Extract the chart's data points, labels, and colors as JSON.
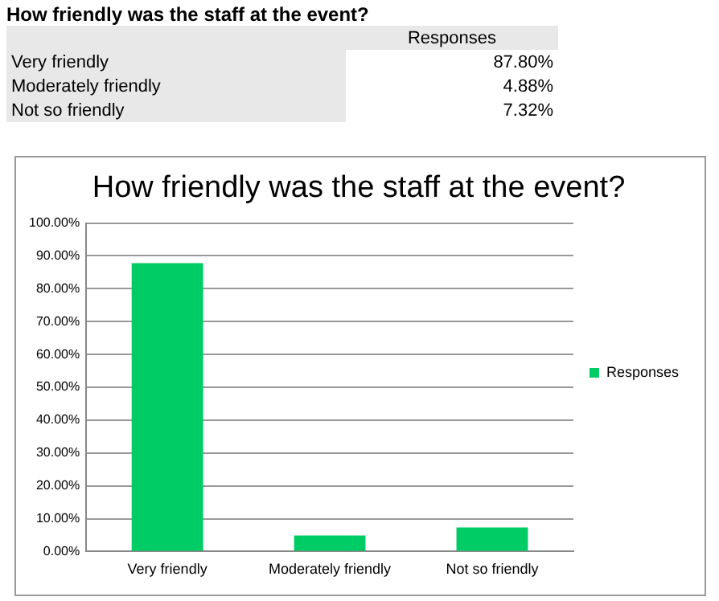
{
  "chart_data": [
    {
      "type": "other",
      "title": "How friendly was the staff at the event?",
      "annotations": [
        "Responses",
        "Very friendly",
        "87.80%",
        "Moderately friendly",
        "4.88%",
        "Not so friendly",
        "7.32%"
      ]
    },
    {
      "type": "bar",
      "title": "How friendly was the staff at the event?",
      "categories": [
        "Very friendly",
        "Moderately friendly",
        "Not so friendly"
      ],
      "series": [
        {
          "name": "Responses",
          "color": "#00cc66",
          "values": [
            87.8,
            4.88,
            7.32
          ]
        }
      ],
      "ylim": [
        0,
        100
      ],
      "yticks": [
        {
          "value": 0,
          "label": "0.00%"
        },
        {
          "value": 10,
          "label": "10.00%"
        },
        {
          "value": 20,
          "label": "20.00%"
        },
        {
          "value": 30,
          "label": "30.00%"
        },
        {
          "value": 40,
          "label": "40.00%"
        },
        {
          "value": 50,
          "label": "50.00%"
        },
        {
          "value": 60,
          "label": "60.00%"
        },
        {
          "value": 70,
          "label": "70.00%"
        },
        {
          "value": 80,
          "label": "80.00%"
        },
        {
          "value": 90,
          "label": "90.00%"
        },
        {
          "value": 100,
          "label": "100.00%"
        }
      ],
      "grid": "y",
      "legend": "right"
    }
  ]
}
